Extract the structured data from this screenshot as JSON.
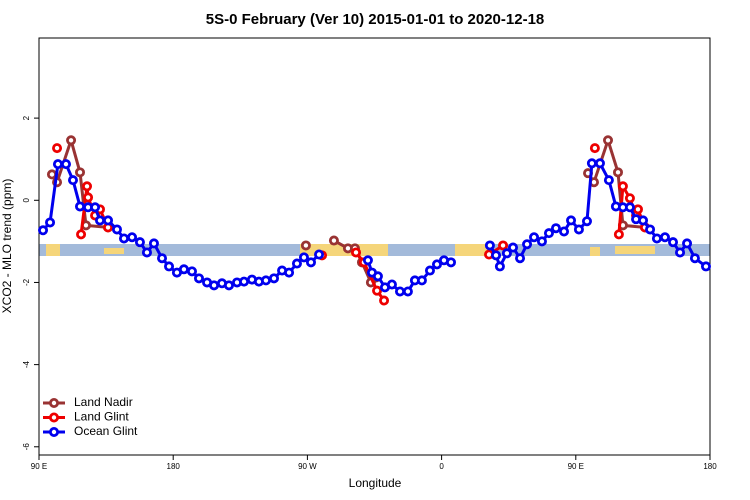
{
  "chart_data": {
    "type": "line",
    "title": "5S-0 February (Ver 10)   2015-01-01 to 2020-12-18",
    "xlabel": "Longitude",
    "ylabel": "XCO2 - MLO trend (ppm)",
    "xlim": [
      90,
      540
    ],
    "ylim": [
      -6.2,
      3.95
    ],
    "xticks": [
      {
        "value": 90,
        "label": "90 E"
      },
      180,
      {
        "value": 270,
        "label": "90 W"
      },
      {
        "value": 360,
        "label": "0"
      },
      {
        "value": 450,
        "label": "90 E"
      },
      {
        "value": 540,
        "label": "180"
      }
    ],
    "yticks": [
      -6,
      -4,
      -2,
      0,
      2
    ],
    "legend": "bottomleft",
    "series": [
      {
        "name": "Land Nadir",
        "color": "#993333",
        "x": [
          98.7,
          102.1,
          111.5,
          117.5,
          121.5,
          136.3,
          null,
          269.0,
          null,
          287.8,
          297.2,
          301.9,
          306.6,
          312.6,
          316.0,
          null,
          458.2,
          462.2,
          471.6,
          478.3,
          481.6,
          496.4
        ],
        "values": [
          0.63,
          0.44,
          1.46,
          0.68,
          -0.61,
          -0.66,
          null,
          -1.1,
          null,
          -0.98,
          -1.17,
          -1.17,
          -1.51,
          -2.0,
          -1.88,
          null,
          0.66,
          0.44,
          1.46,
          0.68,
          -0.61,
          -0.66
        ]
      },
      {
        "name": "Land Glint",
        "color": "#ee0000",
        "x": [
          102.1,
          null,
          118.2,
          122.2,
          122.9,
          127.6,
          130.9,
          136.3,
          null,
          279.8,
          null,
          302.6,
          307.9,
          316.7,
          321.4,
          null,
          391.8,
          401.2,
          null,
          462.8,
          null,
          478.9,
          481.6,
          486.3,
          490.4,
          491.7,
          496.4
        ],
        "values": [
          1.27,
          null,
          -0.83,
          0.34,
          0.07,
          -0.37,
          -0.22,
          -0.66,
          null,
          -1.34,
          null,
          -1.27,
          -1.51,
          -2.2,
          -2.44,
          null,
          -1.32,
          -1.1,
          null,
          1.27,
          null,
          -0.83,
          0.34,
          0.05,
          -0.37,
          -0.22,
          -0.66
        ]
      },
      {
        "name": "Ocean Glint",
        "color": "#0000ee",
        "x": [
          92.7,
          97.4,
          102.7,
          108.1,
          112.8,
          117.5,
          122.9,
          127.6,
          130.9,
          136.3,
          142.3,
          147.0,
          152.4,
          157.7,
          162.4,
          167.1,
          172.5,
          177.2,
          182.5,
          187.2,
          192.6,
          197.3,
          202.7,
          207.4,
          212.7,
          217.4,
          222.8,
          227.5,
          232.8,
          237.5,
          242.2,
          247.6,
          253.0,
          257.7,
          263.0,
          267.7,
          272.4,
          277.8,
          null,
          310.6,
          313.3,
          317.3,
          322.0,
          326.7,
          332.1,
          337.4,
          342.1,
          346.8,
          352.2,
          356.9,
          361.6,
          366.3,
          null,
          392.4,
          396.5,
          399.1,
          403.8,
          407.9,
          412.6,
          417.3,
          422.0,
          427.3,
          432.0,
          436.7,
          442.1,
          446.8,
          452.1,
          457.5,
          460.8,
          466.2,
          472.2,
          476.9,
          481.6,
          486.3,
          490.4,
          495.1,
          499.8,
          504.4,
          509.8,
          515.2,
          519.9,
          524.6,
          529.9,
          537.3
        ],
        "values": [
          -0.73,
          -0.54,
          0.88,
          0.88,
          0.49,
          -0.15,
          -0.17,
          -0.17,
          -0.49,
          -0.49,
          -0.71,
          -0.93,
          -0.9,
          -1.02,
          -1.27,
          -1.05,
          -1.41,
          -1.61,
          -1.76,
          -1.68,
          -1.73,
          -1.9,
          -2.0,
          -2.07,
          -2.02,
          -2.07,
          -2.0,
          -1.98,
          -1.93,
          -1.98,
          -1.95,
          -1.9,
          -1.71,
          -1.76,
          -1.54,
          -1.39,
          -1.51,
          -1.32,
          null,
          -1.46,
          -1.76,
          -1.85,
          -2.12,
          -2.05,
          -2.22,
          -2.22,
          -1.95,
          -1.95,
          -1.71,
          -1.56,
          -1.46,
          -1.51,
          null,
          -1.1,
          -1.34,
          -1.61,
          -1.29,
          -1.15,
          -1.41,
          -1.07,
          -0.9,
          -1.0,
          -0.8,
          -0.68,
          -0.76,
          -0.49,
          -0.71,
          -0.51,
          0.9,
          0.9,
          0.49,
          -0.15,
          -0.17,
          -0.17,
          -0.46,
          -0.49,
          -0.71,
          -0.93,
          -0.9,
          -1.02,
          -1.27,
          -1.05,
          -1.41,
          -1.61
        ]
      }
    ]
  }
}
